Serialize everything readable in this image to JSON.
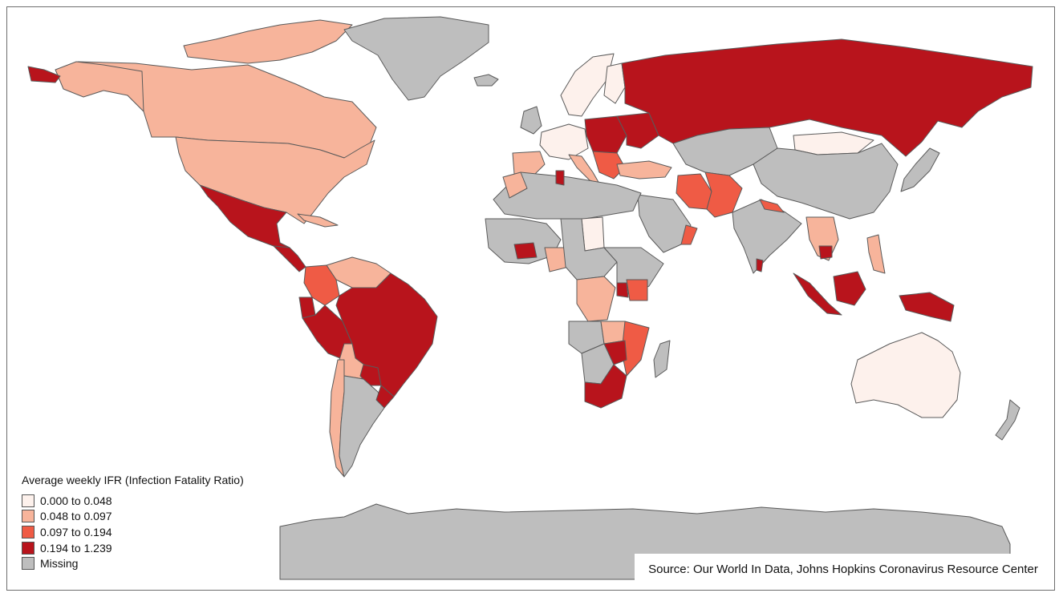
{
  "legend": {
    "title": "Average weekly IFR (Infection Fatality Ratio)",
    "classes": [
      {
        "label": "0.000 to 0.048",
        "color": "#fdf1ec"
      },
      {
        "label": "0.048 to 0.097",
        "color": "#f7b49b"
      },
      {
        "label": "0.097 to 0.194",
        "color": "#ef5b45"
      },
      {
        "label": "0.194 to 1.239",
        "color": "#b8141c"
      },
      {
        "label": "Missing",
        "color": "#bebebe"
      }
    ]
  },
  "source": "Source: Our World In Data, Johns Hopkins Coronavirus Resource Center",
  "regions": [
    {
      "name": "Canada",
      "cls": 1
    },
    {
      "name": "Alaska",
      "cls": 1
    },
    {
      "name": "Canadian Arctic Islands",
      "cls": 1
    },
    {
      "name": "Aleutian Far West",
      "cls": 3
    },
    {
      "name": "Greenland",
      "cls": 4
    },
    {
      "name": "Iceland",
      "cls": 4
    },
    {
      "name": "United States",
      "cls": 1
    },
    {
      "name": "Mexico",
      "cls": 3
    },
    {
      "name": "Central America",
      "cls": 3
    },
    {
      "name": "Cuba",
      "cls": 1
    },
    {
      "name": "Venezuela / Guyana",
      "cls": 1
    },
    {
      "name": "Colombia",
      "cls": 2
    },
    {
      "name": "Ecuador",
      "cls": 3
    },
    {
      "name": "Peru",
      "cls": 3
    },
    {
      "name": "Brazil",
      "cls": 3
    },
    {
      "name": "Bolivia",
      "cls": 1
    },
    {
      "name": "Paraguay",
      "cls": 3
    },
    {
      "name": "Chile",
      "cls": 1
    },
    {
      "name": "Argentina",
      "cls": 4
    },
    {
      "name": "Uruguay",
      "cls": 3
    },
    {
      "name": "Scandinavia",
      "cls": 0
    },
    {
      "name": "Finland",
      "cls": 0
    },
    {
      "name": "United Kingdom",
      "cls": 4
    },
    {
      "name": "Western Europe",
      "cls": 0
    },
    {
      "name": "Spain / Portugal",
      "cls": 1
    },
    {
      "name": "Italy",
      "cls": 1
    },
    {
      "name": "Central Europe",
      "cls": 3
    },
    {
      "name": "Balkans",
      "cls": 2
    },
    {
      "name": "Ukraine",
      "cls": 3
    },
    {
      "name": "Russia",
      "cls": 3
    },
    {
      "name": "Kazakhstan / Central Asia",
      "cls": 4
    },
    {
      "name": "Mongolia",
      "cls": 0
    },
    {
      "name": "China",
      "cls": 4
    },
    {
      "name": "Turkey",
      "cls": 1
    },
    {
      "name": "Iran",
      "cls": 2
    },
    {
      "name": "Afghanistan / Pakistan",
      "cls": 2
    },
    {
      "name": "Arabian Peninsula",
      "cls": 4
    },
    {
      "name": "Oman",
      "cls": 2
    },
    {
      "name": "India",
      "cls": 4
    },
    {
      "name": "Nepal",
      "cls": 2
    },
    {
      "name": "Southeast Asia",
      "cls": 1
    },
    {
      "name": "Cambodia",
      "cls": 3
    },
    {
      "name": "Sri Lanka",
      "cls": 3
    },
    {
      "name": "Japan",
      "cls": 4
    },
    {
      "name": "Philippines",
      "cls": 1
    },
    {
      "name": "Sumatra",
      "cls": 3
    },
    {
      "name": "Borneo",
      "cls": 3
    },
    {
      "name": "New Guinea",
      "cls": 3
    },
    {
      "name": "Australia",
      "cls": 0
    },
    {
      "name": "New Zealand",
      "cls": 4
    },
    {
      "name": "North Africa",
      "cls": 4
    },
    {
      "name": "Morocco",
      "cls": 1
    },
    {
      "name": "Tunisia",
      "cls": 3
    },
    {
      "name": "Sudan",
      "cls": 0
    },
    {
      "name": "West Africa",
      "cls": 4
    },
    {
      "name": "Burkina Faso",
      "cls": 3
    },
    {
      "name": "Nigeria",
      "cls": 1
    },
    {
      "name": "Central Africa",
      "cls": 4
    },
    {
      "name": "DR Congo",
      "cls": 1
    },
    {
      "name": "East Africa",
      "cls": 4
    },
    {
      "name": "Kenya",
      "cls": 2
    },
    {
      "name": "Uganda",
      "cls": 3
    },
    {
      "name": "Angola",
      "cls": 4
    },
    {
      "name": "Zambia",
      "cls": 1
    },
    {
      "name": "Mozambique / Malawi",
      "cls": 2
    },
    {
      "name": "Zimbabwe",
      "cls": 3
    },
    {
      "name": "Namibia / Botswana",
      "cls": 4
    },
    {
      "name": "South Africa",
      "cls": 3
    },
    {
      "name": "Madagascar",
      "cls": 4
    },
    {
      "name": "Antarctica",
      "cls": 4
    }
  ]
}
